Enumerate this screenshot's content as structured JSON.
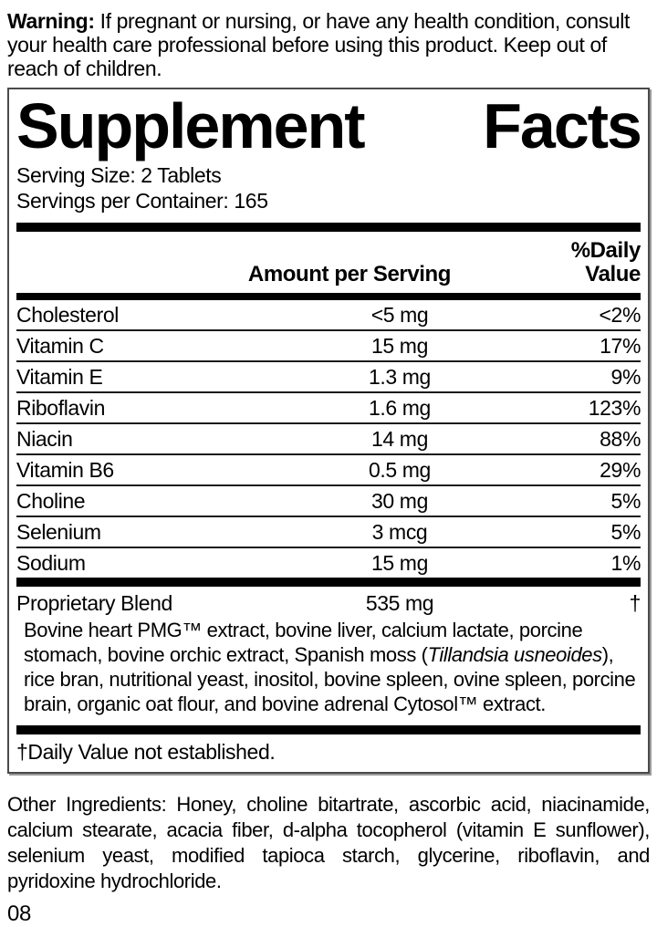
{
  "warning": {
    "label": "Warning:",
    "text": " If pregnant or nursing, or have any health condition, consult your health care professional before using this product. Keep out of reach of children."
  },
  "panel": {
    "title_left": "Supplement",
    "title_right": "Facts",
    "serving_size": "Serving Size: 2 Tablets",
    "servings_per_container": "Servings per Container: 165",
    "columns": {
      "amount": "Amount per Serving",
      "dv": "%Daily Value"
    },
    "rows": [
      {
        "name": "Cholesterol",
        "amount": "<5 mg",
        "dv": "<2%"
      },
      {
        "name": "Vitamin C",
        "amount": "15 mg",
        "dv": "17%"
      },
      {
        "name": "Vitamin E",
        "amount": "1.3 mg",
        "dv": "9%"
      },
      {
        "name": "Riboflavin",
        "amount": "1.6 mg",
        "dv": "123%"
      },
      {
        "name": "Niacin",
        "amount": "14 mg",
        "dv": "88%"
      },
      {
        "name": "Vitamin B6",
        "amount": "0.5 mg",
        "dv": "29%"
      },
      {
        "name": "Choline",
        "amount": "30 mg",
        "dv": "5%"
      },
      {
        "name": "Selenium",
        "amount": "3 mcg",
        "dv": "5%"
      },
      {
        "name": "Sodium",
        "amount": "15 mg",
        "dv": "1%"
      }
    ],
    "blend": {
      "name": "Proprietary Blend",
      "amount": "535 mg",
      "dv": "†",
      "desc_before_italic": "Bovine heart PMG™ extract, bovine liver, calcium lactate, porcine stomach, bovine orchic extract, Spanish moss (",
      "desc_italic": "Tillandsia usneoides",
      "desc_after_italic": "), rice bran, nutritional yeast, inositol, bovine spleen, ovine spleen, porcine brain, organic oat flour, and bovine adrenal Cytosol™ extract."
    },
    "footnote": "†Daily Value not established."
  },
  "other_ingredients": "Other Ingredients: Honey, choline bitartrate, ascorbic acid, niacinamide, calcium stearate, acacia fiber, d-alpha tocopherol (vitamin E sunflower), selenium yeast, modified tapioca starch, glycerine, riboflavin, and pyridoxine hydrochloride.",
  "code": "08",
  "colors": {
    "ink": "#000000",
    "panel_border": "#4a4a4a",
    "background": "#ffffff"
  }
}
